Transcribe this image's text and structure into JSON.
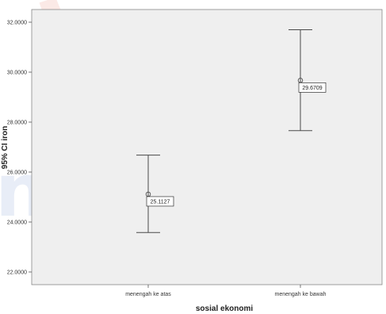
{
  "chart_data": {
    "type": "errorbar",
    "xlabel": "sosial ekonomi",
    "ylabel": "95% CI iron",
    "categories": [
      "menengah ke atas",
      "menengah ke bawah"
    ],
    "series": [
      {
        "values": [
          25.1127,
          29.6709
        ],
        "lower": [
          23.58,
          27.66
        ],
        "upper": [
          26.68,
          31.7
        ],
        "data_labels": [
          "25.1127",
          "29.6709"
        ]
      }
    ],
    "ylim": [
      21.6,
      32.6
    ],
    "yticks": [
      22.0,
      24.0,
      26.0,
      28.0,
      30.0,
      32.0
    ],
    "ytick_labels": [
      "22.0000",
      "24.0000",
      "26.0000",
      "28.0000",
      "30.0000",
      "32.0000"
    ],
    "grid": false,
    "legend": "none",
    "colors": {
      "plot_background": "#efefef",
      "marks": "#4a4a4a",
      "watermark_blue": "#2a56b8",
      "watermark_red": "#e0533a"
    },
    "watermark": "nggul"
  }
}
